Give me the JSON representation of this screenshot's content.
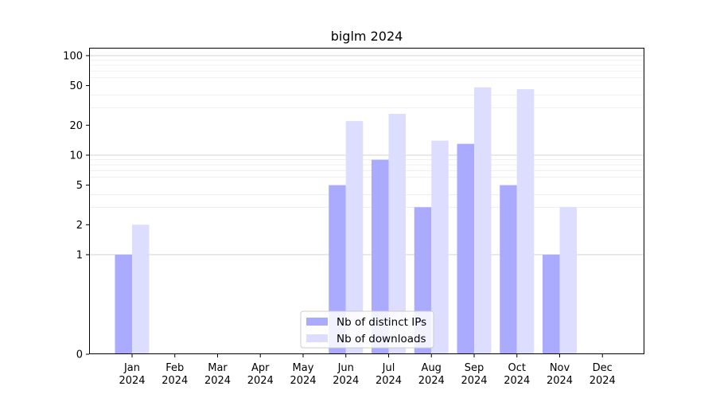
{
  "chart_data": {
    "type": "bar",
    "title": "biglm 2024",
    "xlabel": "",
    "ylabel": "",
    "y_scale": "symlog",
    "ylim": [
      0,
      120
    ],
    "y_ticks": [
      0,
      1,
      2,
      5,
      10,
      20,
      50,
      100
    ],
    "y_tick_labels": [
      "0",
      "1",
      "2",
      "5",
      "10",
      "20",
      "50",
      "100"
    ],
    "grid": "horizontal",
    "legend_position": "bottom-center",
    "categories": [
      {
        "month": "Jan",
        "year": "2024"
      },
      {
        "month": "Feb",
        "year": "2024"
      },
      {
        "month": "Mar",
        "year": "2024"
      },
      {
        "month": "Apr",
        "year": "2024"
      },
      {
        "month": "May",
        "year": "2024"
      },
      {
        "month": "Jun",
        "year": "2024"
      },
      {
        "month": "Jul",
        "year": "2024"
      },
      {
        "month": "Aug",
        "year": "2024"
      },
      {
        "month": "Sep",
        "year": "2024"
      },
      {
        "month": "Oct",
        "year": "2024"
      },
      {
        "month": "Nov",
        "year": "2024"
      },
      {
        "month": "Dec",
        "year": "2024"
      }
    ],
    "series": [
      {
        "name": "Nb of distinct IPs",
        "color": "#aaaaff",
        "values": [
          1,
          0,
          0,
          0,
          0,
          5,
          9,
          3,
          13,
          5,
          1,
          0
        ]
      },
      {
        "name": "Nb of downloads",
        "color": "#ddddff",
        "values": [
          2,
          0,
          0,
          0,
          0,
          22,
          26,
          14,
          48,
          46,
          3,
          0
        ]
      }
    ]
  }
}
